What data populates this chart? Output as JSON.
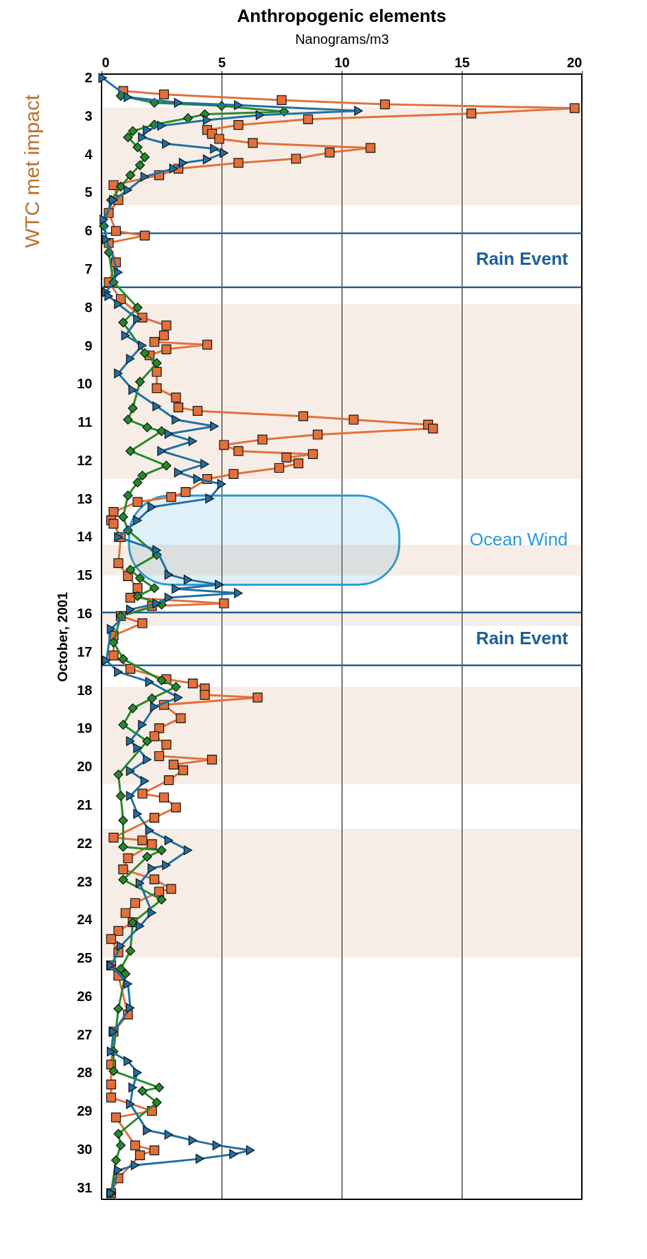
{
  "chart_data": {
    "type": "line",
    "title": "Anthropogenic elements",
    "xlabel": "Nanograms/m3",
    "ylabel": "October, 2001",
    "xlim": [
      0,
      20
    ],
    "xticks": [
      0,
      5,
      10,
      15,
      20
    ],
    "ylim": [
      31.3,
      1.9
    ],
    "yticks": [
      2,
      3,
      4,
      5,
      6,
      7,
      8,
      9,
      10,
      11,
      12,
      13,
      14,
      15,
      16,
      17,
      18,
      19,
      20,
      21,
      22,
      23,
      24,
      25,
      26,
      27,
      28,
      29,
      30,
      31
    ],
    "grid": "x",
    "series": [
      {
        "color": "#e2703a",
        "marker": "square",
        "values": [
          2.34,
          2.43,
          2.58,
          2.69,
          2.79,
          2.93,
          3.08,
          3.23,
          3.36,
          3.46,
          3.59,
          3.7,
          3.83,
          3.95,
          4.11,
          4.22,
          4.37,
          4.54,
          4.8,
          5.19,
          5.53,
          6.0,
          6.12,
          6.31,
          6.82,
          7.34,
          7.78,
          8.26,
          8.47,
          8.73,
          8.9,
          8.97,
          9.09,
          9.25,
          9.68,
          10.11,
          10.35,
          10.61,
          10.7,
          10.84,
          10.93,
          11.06,
          11.16,
          11.32,
          11.45,
          11.59,
          11.75,
          11.83,
          11.92,
          12.07,
          12.19,
          12.35,
          12.48,
          12.82,
          12.95,
          13.08,
          13.34,
          13.56,
          13.65,
          14.0,
          14.68,
          15.02,
          15.33,
          15.58,
          15.73,
          15.8,
          16.06,
          16.25,
          16.57,
          17.09,
          17.44,
          17.71,
          17.82,
          17.95,
          18.12,
          18.19,
          18.38,
          18.73,
          18.99,
          19.2,
          19.42,
          19.72,
          19.81,
          19.94,
          20.09,
          20.35,
          20.7,
          20.8,
          21.06,
          21.33,
          21.85,
          21.92,
          22.02,
          22.39,
          22.68,
          22.94,
          23.19,
          23.26,
          23.56,
          23.82,
          24.06,
          24.29,
          24.5,
          24.85,
          25.19,
          25.46,
          26.47,
          26.92,
          27.78,
          28.3,
          28.64,
          28.99,
          29.16,
          29.89,
          30.02,
          30.15,
          30.75,
          31.14
        ],
        "x": [
          0.9,
          2.6,
          7.5,
          11.8,
          19.7,
          15.4,
          8.6,
          5.7,
          4.4,
          4.6,
          4.9,
          6.3,
          11.2,
          9.5,
          8.1,
          5.7,
          3.2,
          2.4,
          0.5,
          0.7,
          0.3,
          0.6,
          1.8,
          0.3,
          0.6,
          0.3,
          0.8,
          1.7,
          2.7,
          2.6,
          2.2,
          4.4,
          2.7,
          2.0,
          2.3,
          2.3,
          3.1,
          3.2,
          4.0,
          8.4,
          10.5,
          13.6,
          13.8,
          9.0,
          6.7,
          5.1,
          5.7,
          8.8,
          7.7,
          8.2,
          7.4,
          5.5,
          4.4,
          3.5,
          2.9,
          1.5,
          0.5,
          0.4,
          0.5,
          0.8,
          0.7,
          1.1,
          1.5,
          1.2,
          5.1,
          2.1,
          0.8,
          1.7,
          0.5,
          0.5,
          1.2,
          2.7,
          3.8,
          4.3,
          4.3,
          6.5,
          2.6,
          3.3,
          2.4,
          2.2,
          2.7,
          2.4,
          4.6,
          3.0,
          3.4,
          2.8,
          1.7,
          2.6,
          3.1,
          2.2,
          0.5,
          1.7,
          2.1,
          1.1,
          0.9,
          2.2,
          2.9,
          2.4,
          1.4,
          1.0,
          1.3,
          0.7,
          0.4,
          0.7,
          0.4,
          0.7,
          1.1,
          0.5,
          0.4,
          0.4,
          0.4,
          2.1,
          0.6,
          1.4,
          2.2,
          1.6,
          0.7,
          0.4
        ]
      },
      {
        "color": "#238a2a",
        "marker": "diamond",
        "values": [
          2.47,
          2.65,
          2.73,
          2.88,
          2.95,
          3.05,
          3.22,
          3.39,
          3.55,
          3.81,
          4.07,
          4.28,
          4.54,
          4.84,
          5.19,
          5.87,
          6.56,
          7.34,
          8.0,
          8.39,
          9.19,
          9.45,
          9.94,
          10.63,
          10.93,
          11.13,
          11.23,
          11.75,
          12.13,
          12.39,
          12.57,
          12.91,
          13.47,
          13.82,
          14.46,
          14.85,
          15.07,
          15.33,
          15.54,
          15.76,
          16.06,
          16.75,
          17.18,
          17.74,
          17.91,
          18.21,
          18.47,
          18.9,
          19.33,
          20.2,
          20.76,
          21.4,
          22.09,
          22.18,
          22.35,
          22.95,
          23.47,
          24.07,
          24.81,
          25.28,
          25.41,
          26.32,
          27.44,
          27.95,
          28.38,
          28.47,
          28.77,
          29.59,
          29.89,
          30.28,
          31.14
        ],
        "x": [
          0.8,
          2.2,
          5.0,
          7.6,
          4.3,
          3.6,
          2.2,
          1.3,
          1.1,
          1.5,
          1.8,
          1.6,
          1.2,
          0.8,
          0.4,
          0.1,
          0.3,
          0.5,
          1.5,
          0.9,
          1.8,
          2.3,
          1.6,
          1.3,
          1.1,
          1.9,
          2.5,
          1.2,
          2.7,
          1.7,
          1.5,
          1.1,
          0.9,
          1.1,
          2.3,
          1.2,
          1.6,
          2.2,
          1.5,
          2.5,
          0.8,
          0.5,
          0.9,
          2.5,
          3.1,
          2.1,
          1.3,
          0.9,
          1.9,
          0.7,
          0.8,
          0.9,
          0.9,
          2.5,
          1.9,
          0.9,
          2.5,
          1.3,
          1.2,
          0.8,
          1.0,
          0.7,
          0.5,
          0.5,
          2.4,
          1.7,
          2.3,
          0.7,
          0.8,
          0.6,
          0.4
        ]
      },
      {
        "color": "#1f6fa5",
        "marker": "triangle",
        "values": [
          2.0,
          2.5,
          2.65,
          2.71,
          2.86,
          2.97,
          3.1,
          3.25,
          3.36,
          3.55,
          3.72,
          3.85,
          3.96,
          4.13,
          4.22,
          4.37,
          4.58,
          4.93,
          5.19,
          5.7,
          6.22,
          7.08,
          7.6,
          7.7,
          7.91,
          8.3,
          8.73,
          8.99,
          9.34,
          9.72,
          10.15,
          10.58,
          10.93,
          11.1,
          11.3,
          11.49,
          11.75,
          12.09,
          12.31,
          12.48,
          12.61,
          12.99,
          13.21,
          13.56,
          14.0,
          14.34,
          14.98,
          15.11,
          15.24,
          15.35,
          15.46,
          15.58,
          15.73,
          15.89,
          16.4,
          17.22,
          17.52,
          17.78,
          18.19,
          18.43,
          18.9,
          19.33,
          19.51,
          19.81,
          20.11,
          20.37,
          20.76,
          21.23,
          21.66,
          21.92,
          22.18,
          22.57,
          22.65,
          23.04,
          23.81,
          24.16,
          24.68,
          25.19,
          25.67,
          26.3,
          26.92,
          27.44,
          27.69,
          27.99,
          28.38,
          28.81,
          29.5,
          29.61,
          29.76,
          29.89,
          30.02,
          30.12,
          30.24,
          30.41,
          30.54,
          31.14
        ],
        "x": [
          0.05,
          1.1,
          3.2,
          5.7,
          10.7,
          6.6,
          4.4,
          2.5,
          1.9,
          1.7,
          2.7,
          4.7,
          5.1,
          4.4,
          3.4,
          3.0,
          1.8,
          1.1,
          0.5,
          0.1,
          0.2,
          0.7,
          0.2,
          0.3,
          0.7,
          1.5,
          1.0,
          1.7,
          1.2,
          0.7,
          1.3,
          2.3,
          3.1,
          4.7,
          2.8,
          3.8,
          2.5,
          4.3,
          3.2,
          4.0,
          5.0,
          4.5,
          2.1,
          1.5,
          0.7,
          2.3,
          2.8,
          3.6,
          4.9,
          3.1,
          5.7,
          2.8,
          2.3,
          1.2,
          0.4,
          0.2,
          0.7,
          2.0,
          3.2,
          2.2,
          1.7,
          1.2,
          1.5,
          1.9,
          1.2,
          1.8,
          1.2,
          1.5,
          2.0,
          2.8,
          3.6,
          2.7,
          2.1,
          1.6,
          2.1,
          1.6,
          0.8,
          0.4,
          1.1,
          1.2,
          0.5,
          0.4,
          1.1,
          1.5,
          1.3,
          1.2,
          1.9,
          2.8,
          3.8,
          4.8,
          6.2,
          5.5,
          4.1,
          1.4,
          0.7,
          0.4
        ]
      }
    ],
    "ref_lines": [
      {
        "axis": "y",
        "value": 6.06,
        "label": "Rain Event",
        "color": "#1f5f99"
      },
      {
        "axis": "y",
        "value": 7.47,
        "label": null,
        "color": "#1f5f99"
      },
      {
        "axis": "y",
        "value": 15.97,
        "label": "Rain Event",
        "color": "#1f5f99"
      },
      {
        "axis": "y",
        "value": 17.35,
        "label": null,
        "color": "#1f5f99"
      }
    ],
    "bands": [
      {
        "axis": "y",
        "from": 12.91,
        "to": 15.24,
        "label": "Ocean Wind",
        "color": "#2b9bd1"
      },
      {
        "axis": "y",
        "from": 2.77,
        "to": 5.32,
        "label": null,
        "color": "#b87333"
      },
      {
        "axis": "y",
        "from": 7.91,
        "to": 12.48,
        "label": null,
        "color": "#b87333"
      },
      {
        "axis": "y",
        "from": 14.2,
        "to": 15.0,
        "label": null,
        "color": "#b87333"
      },
      {
        "axis": "y",
        "from": 15.93,
        "to": 16.32,
        "label": null,
        "color": "#b87333"
      },
      {
        "axis": "y",
        "from": 17.91,
        "to": 20.46,
        "label": null,
        "color": "#b87333"
      },
      {
        "axis": "y",
        "from": 21.62,
        "to": 24.98,
        "label": null,
        "color": "#b87333"
      }
    ],
    "annotations": [
      "WTC met impact"
    ]
  }
}
